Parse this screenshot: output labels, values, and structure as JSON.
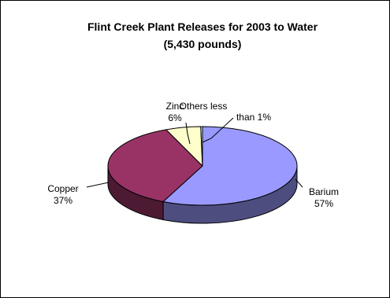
{
  "chart_data": {
    "type": "pie",
    "title_lines": [
      "Flint Creek Plant Releases for 2003 to Water",
      "(5,430 pounds)"
    ],
    "slices": [
      {
        "name": "Barium",
        "value": 57,
        "label_lines": [
          "Barium",
          "57%"
        ],
        "color": "#9999ff",
        "side_color": "#4d4d80"
      },
      {
        "name": "Copper",
        "value": 37,
        "label_lines": [
          "Copper",
          "37%"
        ],
        "color": "#993366",
        "side_color": "#4d1a33"
      },
      {
        "name": "Zinc",
        "value": 6,
        "label_lines": [
          "Zinc",
          "6%"
        ],
        "color": "#ffffcc",
        "side_color": "#808066"
      },
      {
        "name": "Others less than 1%",
        "value": 0.3,
        "label_lines": [
          "Others less",
          "than 1%"
        ],
        "color": "#ccffff",
        "side_color": "#668080"
      }
    ],
    "view": "3d",
    "legend": "none"
  }
}
